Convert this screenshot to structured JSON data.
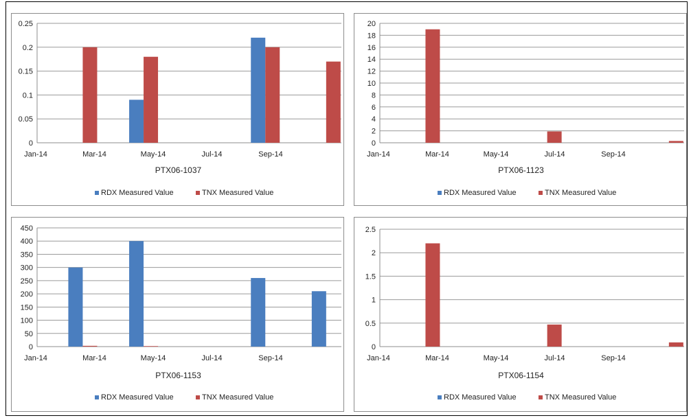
{
  "colors": {
    "rdx": "#4a7ebf",
    "tnx": "#be4b48",
    "grid": "#9a9a9a",
    "axis": "#8c8c8c"
  },
  "chart_data": [
    {
      "type": "bar",
      "title": "PTX06-1037",
      "categories": [
        "Jan-14",
        "Mar-14",
        "May-14",
        "Jul-14",
        "Sep-14"
      ],
      "series": [
        {
          "name": "RDX Measured Value",
          "color": "#4a7ebf",
          "values": [
            null,
            0.09,
            null,
            0.22,
            null
          ]
        },
        {
          "name": "TNX Measured Value",
          "color": "#be4b48",
          "values": [
            0.2,
            0.18,
            null,
            0.2,
            0.17
          ]
        }
      ],
      "ylim": [
        0,
        0.25
      ],
      "yticks": [
        "0",
        "0.05",
        "0.1",
        "0.15",
        "0.2",
        "0.25"
      ],
      "grid": true,
      "legend": "bottom"
    },
    {
      "type": "bar",
      "title": "PTX06-1123",
      "categories": [
        "Jan-14",
        "Mar-14",
        "May-14",
        "Jul-14",
        "Sep-14"
      ],
      "series": [
        {
          "name": "RDX Measured Value",
          "color": "#4a7ebf",
          "values": [
            null,
            null,
            null,
            null,
            null
          ]
        },
        {
          "name": "TNX Measured Value",
          "color": "#be4b48",
          "values": [
            19,
            null,
            1.9,
            null,
            0.3
          ]
        }
      ],
      "ylim": [
        0,
        20
      ],
      "yticks": [
        "0",
        "2",
        "4",
        "6",
        "8",
        "10",
        "12",
        "14",
        "16",
        "18",
        "20"
      ],
      "grid": true,
      "legend": "bottom"
    },
    {
      "type": "bar",
      "title": "PTX06-1153",
      "categories": [
        "Jan-14",
        "Mar-14",
        "May-14",
        "Jul-14",
        "Sep-14"
      ],
      "series": [
        {
          "name": "RDX Measured Value",
          "color": "#4a7ebf",
          "values": [
            300,
            400,
            null,
            260,
            210
          ]
        },
        {
          "name": "TNX Measured Value",
          "color": "#be4b48",
          "values": [
            3,
            2,
            null,
            null,
            null
          ]
        }
      ],
      "ylim": [
        0,
        450
      ],
      "yticks": [
        "0",
        "50",
        "100",
        "150",
        "200",
        "250",
        "300",
        "350",
        "400",
        "450"
      ],
      "grid": true,
      "legend": "bottom"
    },
    {
      "type": "bar",
      "title": "PTX06-1154",
      "categories": [
        "Jan-14",
        "Mar-14",
        "May-14",
        "Jul-14",
        "Sep-14"
      ],
      "series": [
        {
          "name": "RDX Measured Value",
          "color": "#4a7ebf",
          "values": [
            null,
            null,
            null,
            null,
            null
          ]
        },
        {
          "name": "TNX Measured Value",
          "color": "#be4b48",
          "values": [
            2.2,
            null,
            0.47,
            null,
            0.09
          ]
        }
      ],
      "ylim": [
        0,
        2.5
      ],
      "yticks": [
        "0",
        "0.5",
        "1",
        "1.5",
        "2",
        "2.5"
      ],
      "grid": true,
      "legend": "bottom"
    }
  ]
}
